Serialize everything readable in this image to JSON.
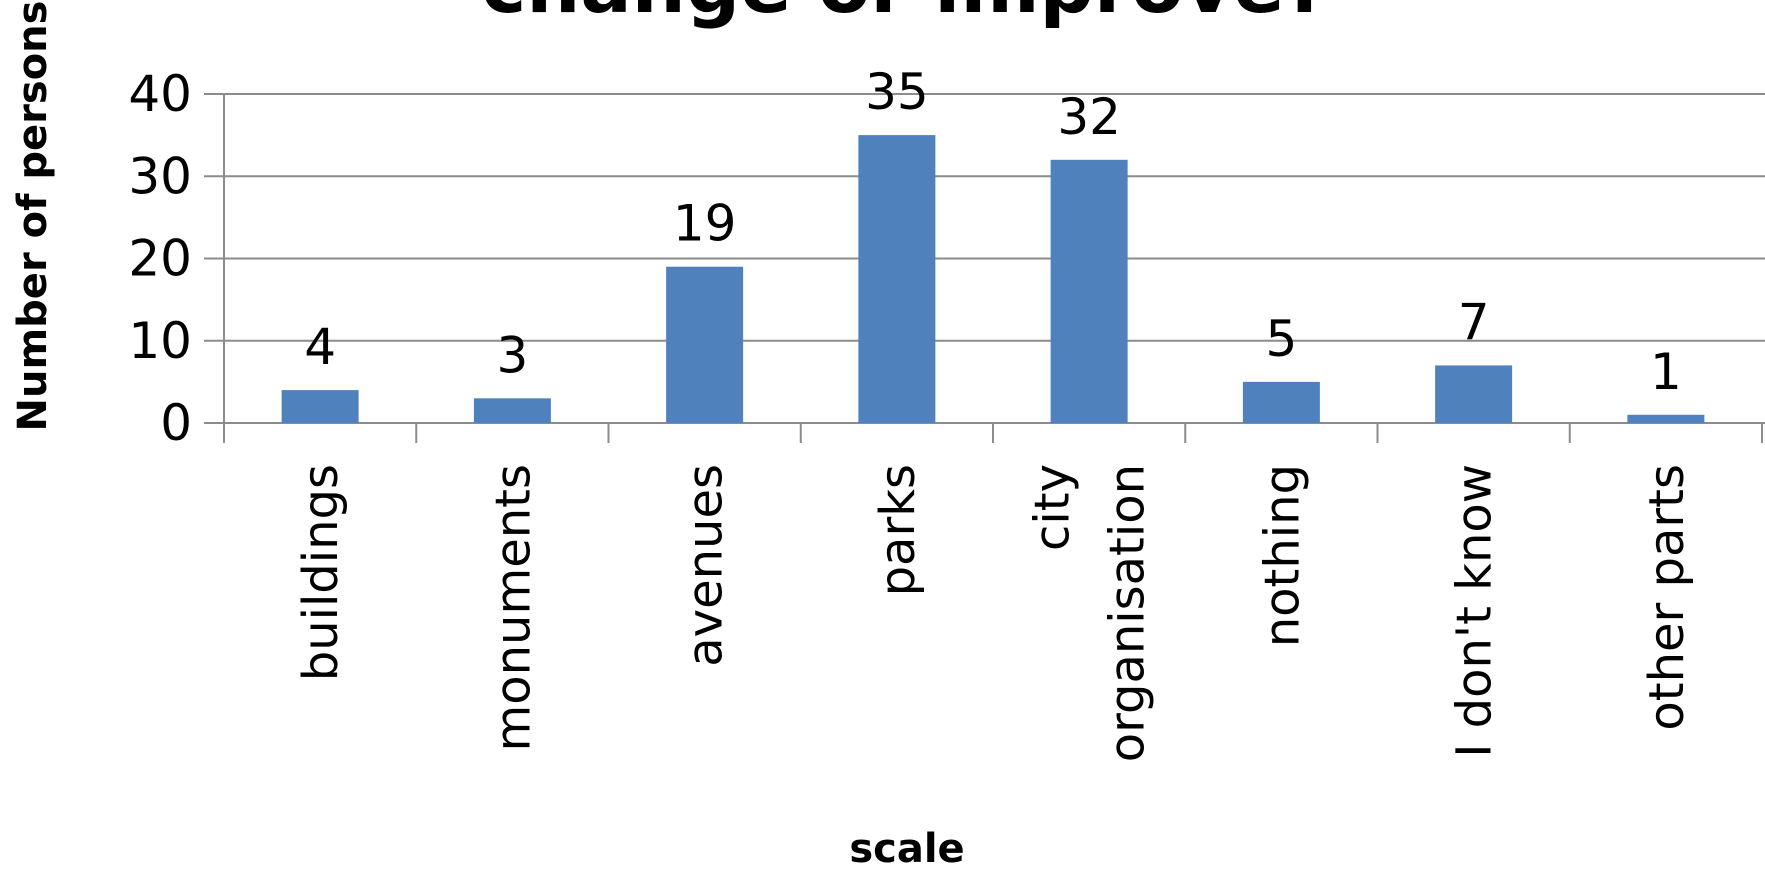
{
  "chart_data": {
    "type": "bar",
    "title": "change or improve?",
    "xlabel": "scale",
    "ylabel": "Number of persons",
    "categories": [
      "buildings",
      "monuments",
      "avenues",
      "parks",
      "city organisation",
      "nothing",
      "I don't know",
      "other parts"
    ],
    "category_lines": [
      [
        "buildings"
      ],
      [
        "monuments"
      ],
      [
        "avenues"
      ],
      [
        "parks"
      ],
      [
        "city",
        "organisation"
      ],
      [
        "nothing"
      ],
      [
        "I don't know"
      ],
      [
        "other parts"
      ]
    ],
    "values": [
      4,
      3,
      19,
      35,
      32,
      5,
      7,
      1
    ],
    "data_labels": [
      "4",
      "3",
      "19",
      "35",
      "32",
      "5",
      "7",
      "1"
    ],
    "ylim": [
      0,
      40
    ],
    "y_ticks": [
      0,
      10,
      20,
      30,
      40
    ],
    "y_tick_labels": [
      "0",
      "10",
      "20",
      "30",
      "40"
    ],
    "grid": true,
    "legend": "none",
    "bar_color": "#4f81bd"
  }
}
